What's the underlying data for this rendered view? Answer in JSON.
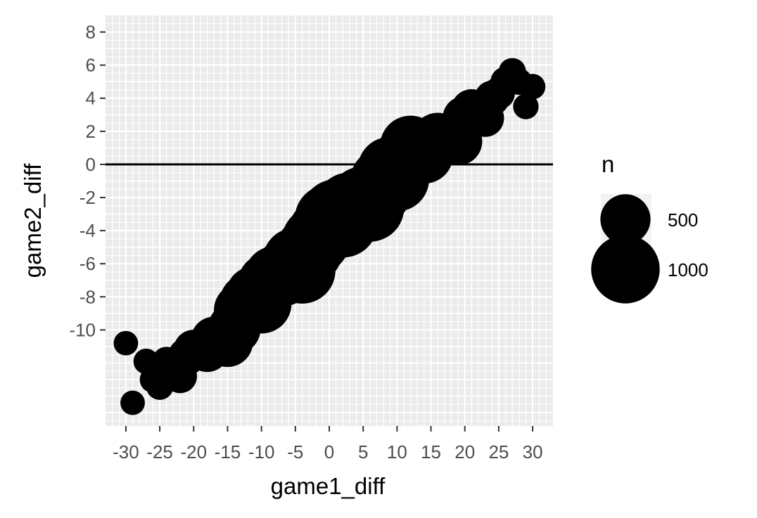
{
  "chart_data": {
    "type": "scatter",
    "xlabel": "game1_diff",
    "ylabel": "game2_diff",
    "xlim": [
      -33,
      33
    ],
    "ylim": [
      -15.8,
      9.0
    ],
    "x_ticks": [
      -30,
      -25,
      -20,
      -15,
      -10,
      -5,
      0,
      5,
      10,
      15,
      20,
      25,
      30
    ],
    "x_tick_labels": [
      "-30",
      "-25",
      "-20",
      "-15",
      "-10",
      "-5",
      "0",
      "5",
      "10",
      "15",
      "20",
      "25",
      "30"
    ],
    "y_ticks": [
      -10,
      -8,
      -6,
      -4,
      -2,
      0,
      2,
      4,
      6,
      8
    ],
    "y_tick_labels": [
      "-10",
      "-8",
      "-6",
      "-4",
      "-2",
      "0",
      "2",
      "4",
      "6",
      "8"
    ],
    "hline": 0,
    "grid": true,
    "size_legend": {
      "title": "n",
      "entries": [
        {
          "label": "500",
          "value": 500
        },
        {
          "label": "1000",
          "value": 1000
        }
      ],
      "position": "right"
    },
    "points": [
      {
        "x": -30,
        "y": -10.8,
        "n": 90
      },
      {
        "x": -29,
        "y": -14.4,
        "n": 90
      },
      {
        "x": -27,
        "y": -11.9,
        "n": 100
      },
      {
        "x": -26,
        "y": -13.0,
        "n": 110
      },
      {
        "x": -25,
        "y": -13.4,
        "n": 120
      },
      {
        "x": -24,
        "y": -11.9,
        "n": 140
      },
      {
        "x": -23,
        "y": -12.5,
        "n": 180
      },
      {
        "x": -22,
        "y": -12.8,
        "n": 200
      },
      {
        "x": -21,
        "y": -11.6,
        "n": 260
      },
      {
        "x": -20,
        "y": -11.2,
        "n": 300
      },
      {
        "x": -18,
        "y": -11.2,
        "n": 380
      },
      {
        "x": -17,
        "y": -10.6,
        "n": 420
      },
      {
        "x": -15,
        "y": -10.7,
        "n": 520
      },
      {
        "x": -14,
        "y": -9.9,
        "n": 560
      },
      {
        "x": -13,
        "y": -8.8,
        "n": 600
      },
      {
        "x": -12,
        "y": -8.3,
        "n": 650
      },
      {
        "x": -11,
        "y": -7.9,
        "n": 700
      },
      {
        "x": -10,
        "y": -8.4,
        "n": 750
      },
      {
        "x": -9,
        "y": -7.2,
        "n": 780
      },
      {
        "x": -8,
        "y": -6.8,
        "n": 800
      },
      {
        "x": -7,
        "y": -6.7,
        "n": 820
      },
      {
        "x": -6,
        "y": -6.3,
        "n": 860
      },
      {
        "x": -5,
        "y": -5.8,
        "n": 900
      },
      {
        "x": -4,
        "y": -6.4,
        "n": 940
      },
      {
        "x": -3,
        "y": -5.2,
        "n": 960
      },
      {
        "x": -2,
        "y": -4.6,
        "n": 980
      },
      {
        "x": -1,
        "y": -4.1,
        "n": 1000
      },
      {
        "x": 0,
        "y": -3.3,
        "n": 1020
      },
      {
        "x": 1,
        "y": -3.0,
        "n": 1040
      },
      {
        "x": 2,
        "y": -3.5,
        "n": 1060
      },
      {
        "x": 3,
        "y": -2.6,
        "n": 1050
      },
      {
        "x": 4,
        "y": -2.6,
        "n": 1040
      },
      {
        "x": 5,
        "y": -2.2,
        "n": 1020
      },
      {
        "x": 6,
        "y": -2.6,
        "n": 1000
      },
      {
        "x": 7,
        "y": -1.7,
        "n": 980
      },
      {
        "x": 8,
        "y": -1.0,
        "n": 940
      },
      {
        "x": 9,
        "y": -0.3,
        "n": 900
      },
      {
        "x": 10,
        "y": -0.9,
        "n": 860
      },
      {
        "x": 11,
        "y": 0.3,
        "n": 820
      },
      {
        "x": 12,
        "y": 1.1,
        "n": 780
      },
      {
        "x": 13,
        "y": 0.8,
        "n": 740
      },
      {
        "x": 14,
        "y": 0.6,
        "n": 700
      },
      {
        "x": 15,
        "y": 1.1,
        "n": 640
      },
      {
        "x": 16,
        "y": 1.5,
        "n": 580
      },
      {
        "x": 17,
        "y": 1.5,
        "n": 520
      },
      {
        "x": 19,
        "y": 1.4,
        "n": 460
      },
      {
        "x": 20,
        "y": 2.8,
        "n": 380
      },
      {
        "x": 21,
        "y": 3.3,
        "n": 320
      },
      {
        "x": 23,
        "y": 2.8,
        "n": 260
      },
      {
        "x": 24,
        "y": 4.0,
        "n": 220
      },
      {
        "x": 25,
        "y": 4.3,
        "n": 180
      },
      {
        "x": 26,
        "y": 5.0,
        "n": 150
      },
      {
        "x": 27,
        "y": 5.6,
        "n": 120
      },
      {
        "x": 28,
        "y": 5.0,
        "n": 110
      },
      {
        "x": 29,
        "y": 3.5,
        "n": 100
      },
      {
        "x": 30,
        "y": 4.7,
        "n": 100
      }
    ]
  }
}
